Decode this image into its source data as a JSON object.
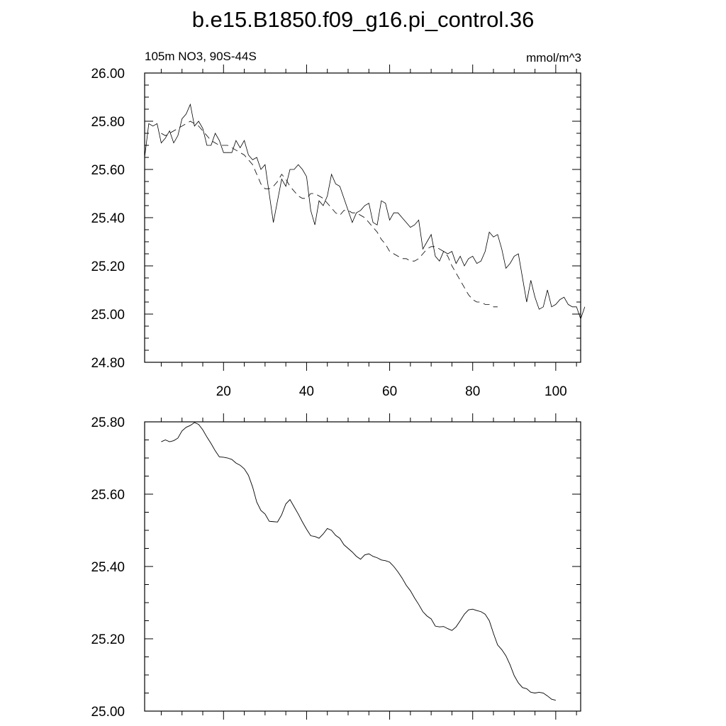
{
  "title": "b.e15.B1850.f09_g16.pi_control.36",
  "chart_data": [
    {
      "type": "line",
      "left_label": "105m NO3, 90S-44S",
      "right_label": "mmol/m^3",
      "xlim": [
        1,
        106
      ],
      "ylim": [
        24.8,
        26.0
      ],
      "x_ticks": [
        20,
        40,
        60,
        80,
        100
      ],
      "x_tick_labels": [
        "20",
        "40",
        "60",
        "80",
        "100"
      ],
      "y_ticks": [
        24.8,
        25.0,
        25.2,
        25.4,
        25.6,
        25.8,
        26.0
      ],
      "y_tick_labels": [
        "24.80",
        "25.00",
        "25.20",
        "25.40",
        "25.60",
        "25.80",
        "26.00"
      ],
      "series": [
        {
          "style": "solid",
          "x_start": 1,
          "values": [
            25.65,
            25.79,
            25.78,
            25.79,
            25.71,
            25.73,
            25.76,
            25.71,
            25.74,
            25.81,
            25.83,
            25.87,
            25.78,
            25.8,
            25.77,
            25.7,
            25.7,
            25.75,
            25.72,
            25.67,
            25.67,
            25.67,
            25.72,
            25.69,
            25.72,
            25.66,
            25.64,
            25.65,
            25.6,
            25.62,
            25.5,
            25.38,
            25.47,
            25.56,
            25.53,
            25.6,
            25.6,
            25.62,
            25.6,
            25.57,
            25.43,
            25.37,
            25.47,
            25.45,
            25.49,
            25.58,
            25.54,
            25.53,
            25.48,
            25.43,
            25.38,
            25.42,
            25.43,
            25.45,
            25.46,
            25.38,
            25.37,
            25.47,
            25.46,
            25.39,
            25.42,
            25.42,
            25.4,
            25.38,
            25.36,
            25.37,
            25.39,
            25.27,
            25.3,
            25.33,
            25.24,
            25.22,
            25.26,
            25.25,
            25.26,
            25.21,
            25.24,
            25.2,
            25.23,
            25.24,
            25.21,
            25.22,
            25.26,
            25.34,
            25.32,
            25.33,
            25.27,
            25.19,
            25.21,
            25.24,
            25.25,
            25.15,
            25.05,
            25.14,
            25.07,
            25.02,
            25.03,
            25.1,
            25.03,
            25.04,
            25.06,
            25.07,
            25.04,
            25.03,
            25.03,
            24.98,
            25.03
          ]
        },
        {
          "style": "dashed",
          "x_start": 5,
          "values": [
            25.75,
            25.74,
            25.75,
            25.76,
            25.77,
            25.78,
            25.79,
            25.8,
            25.79,
            25.78,
            25.76,
            25.74,
            25.72,
            25.71,
            25.7,
            25.7,
            25.7,
            25.69,
            25.68,
            25.67,
            25.66,
            25.64,
            25.62,
            25.58,
            25.54,
            25.52,
            25.52,
            25.53,
            25.55,
            25.58,
            25.56,
            25.53,
            25.51,
            25.49,
            25.48,
            25.48,
            25.5,
            25.5,
            25.49,
            25.48,
            25.46,
            25.44,
            25.42,
            25.41,
            25.43,
            25.43,
            25.42,
            25.42,
            25.41,
            25.4,
            25.38,
            25.36,
            25.34,
            25.31,
            25.29,
            25.26,
            25.25,
            25.24,
            25.23,
            25.23,
            25.22,
            25.22,
            25.23,
            25.25,
            25.27,
            25.28,
            25.28,
            25.27,
            25.26,
            25.24,
            25.2,
            25.17,
            25.14,
            25.11,
            25.08,
            25.06,
            25.05,
            25.05,
            25.04,
            25.04,
            25.03,
            25.03
          ]
        }
      ]
    },
    {
      "type": "line",
      "xlim": [
        1,
        106
      ],
      "ylim": [
        25.0,
        25.8
      ],
      "x_ticks": [
        20,
        40,
        60,
        80,
        100
      ],
      "y_ticks": [
        25.0,
        25.2,
        25.4,
        25.6,
        25.8
      ],
      "y_tick_labels": [
        "25.00",
        "25.20",
        "25.40",
        "25.60",
        "25.80"
      ],
      "series": [
        {
          "style": "solid",
          "x_start": 5,
          "values": [
            25.745,
            25.75,
            25.745,
            25.748,
            25.755,
            25.775,
            25.785,
            25.79,
            25.798,
            25.793,
            25.778,
            25.758,
            25.74,
            25.72,
            25.703,
            25.702,
            25.7,
            25.696,
            25.686,
            25.68,
            25.67,
            25.652,
            25.62,
            25.578,
            25.555,
            25.545,
            25.525,
            25.524,
            25.523,
            25.543,
            25.573,
            25.585,
            25.565,
            25.545,
            25.523,
            25.503,
            25.485,
            25.483,
            25.478,
            25.49,
            25.505,
            25.5,
            25.486,
            25.478,
            25.46,
            25.45,
            25.44,
            25.428,
            25.42,
            25.432,
            25.435,
            25.428,
            25.424,
            25.418,
            25.416,
            25.412,
            25.4,
            25.385,
            25.368,
            25.348,
            25.333,
            25.313,
            25.295,
            25.275,
            25.263,
            25.255,
            25.235,
            25.233,
            25.234,
            25.228,
            25.223,
            25.233,
            25.25,
            25.268,
            25.28,
            25.282,
            25.278,
            25.275,
            25.268,
            25.25,
            25.215,
            25.183,
            25.17,
            25.153,
            25.128,
            25.098,
            25.078,
            25.065,
            25.062,
            25.052,
            25.05,
            25.052,
            25.05,
            25.042,
            25.033,
            25.03
          ]
        }
      ]
    }
  ]
}
